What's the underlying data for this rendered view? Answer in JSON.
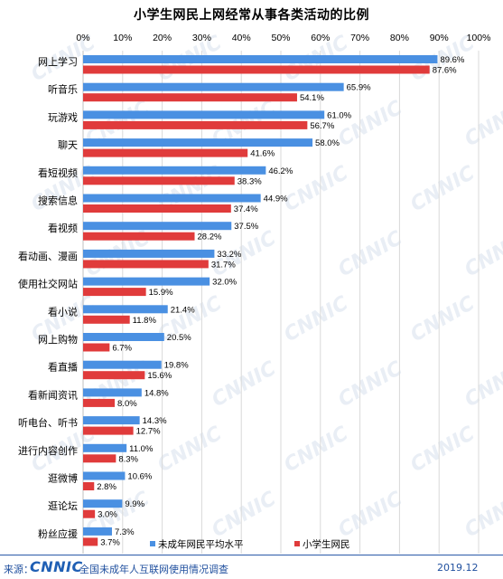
{
  "chart_data": {
    "type": "bar",
    "orientation": "horizontal",
    "title": "小学生网民上网经常从事各类活动的比例",
    "xlim": [
      0,
      100
    ],
    "x_ticks": [
      "0%",
      "10%",
      "20%",
      "30%",
      "40%",
      "50%",
      "60%",
      "70%",
      "80%",
      "90%",
      "100%"
    ],
    "grid": true,
    "legend_position": "bottom",
    "categories": [
      "网上学习",
      "听音乐",
      "玩游戏",
      "聊天",
      "看短视频",
      "搜索信息",
      "看视频",
      "看动画、漫画",
      "使用社交网站",
      "看小说",
      "网上购物",
      "看直播",
      "看新闻资讯",
      "听电台、听书",
      "进行内容创作",
      "逛微博",
      "逛论坛",
      "粉丝应援"
    ],
    "series": [
      {
        "name": "未成年网民平均水平",
        "color": "#4a90e2",
        "values": [
          89.6,
          65.9,
          61.0,
          58.0,
          46.2,
          44.9,
          37.5,
          33.2,
          32.0,
          21.4,
          20.5,
          19.8,
          14.8,
          14.3,
          11.0,
          10.6,
          9.9,
          7.3
        ],
        "labels": [
          "89.6%",
          "65.9%",
          "61.0%",
          "58.0%",
          "46.2%",
          "44.9%",
          "37.5%",
          "33.2%",
          "32.0%",
          "21.4%",
          "20.5%",
          "19.8%",
          "14.8%",
          "14.3%",
          "11.0%",
          "10.6%",
          "9.9%",
          "7.3%"
        ]
      },
      {
        "name": "小学生网民",
        "color": "#e03b3b",
        "values": [
          87.6,
          54.1,
          56.7,
          41.6,
          38.3,
          37.4,
          28.2,
          31.7,
          15.9,
          11.8,
          6.7,
          15.6,
          8.0,
          12.7,
          8.3,
          2.8,
          3.0,
          3.7
        ],
        "labels": [
          "87.6%",
          "54.1%",
          "56.7%",
          "41.6%",
          "38.3%",
          "37.4%",
          "28.2%",
          "31.7%",
          "15.9%",
          "11.8%",
          "6.7%",
          "15.6%",
          "8.0%",
          "12.7%",
          "8.3%",
          "2.8%",
          "3.0%",
          "3.7%"
        ]
      }
    ]
  },
  "footer": {
    "source_label": "来源：",
    "logo_text": "CNNIC",
    "org": "全国未成年人互联网使用情况调查",
    "date": "2019.12"
  },
  "watermark": "CNNIC"
}
